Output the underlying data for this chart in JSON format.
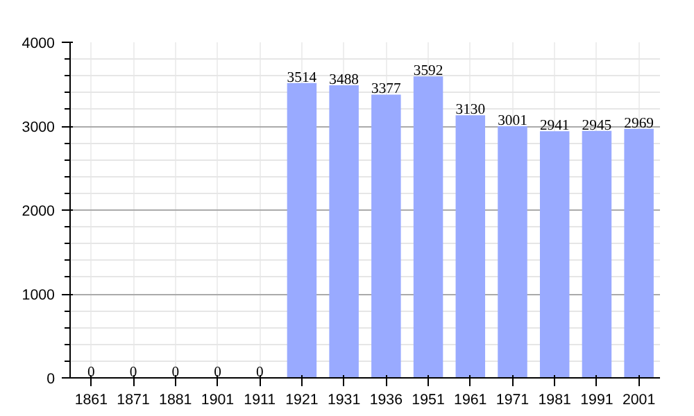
{
  "chart_data": {
    "type": "bar",
    "categories": [
      "1861",
      "1871",
      "1881",
      "1901",
      "1911",
      "1921",
      "1931",
      "1936",
      "1951",
      "1961",
      "1971",
      "1981",
      "1991",
      "2001"
    ],
    "values": [
      0,
      0,
      0,
      0,
      0,
      3514,
      3488,
      3377,
      3592,
      3130,
      3001,
      2941,
      2945,
      2969
    ],
    "color": "#99aaff",
    "ylim": [
      0,
      4000
    ],
    "yticks": [
      0,
      1000,
      2000,
      3000,
      4000
    ],
    "grid": true,
    "data_labels": true
  }
}
